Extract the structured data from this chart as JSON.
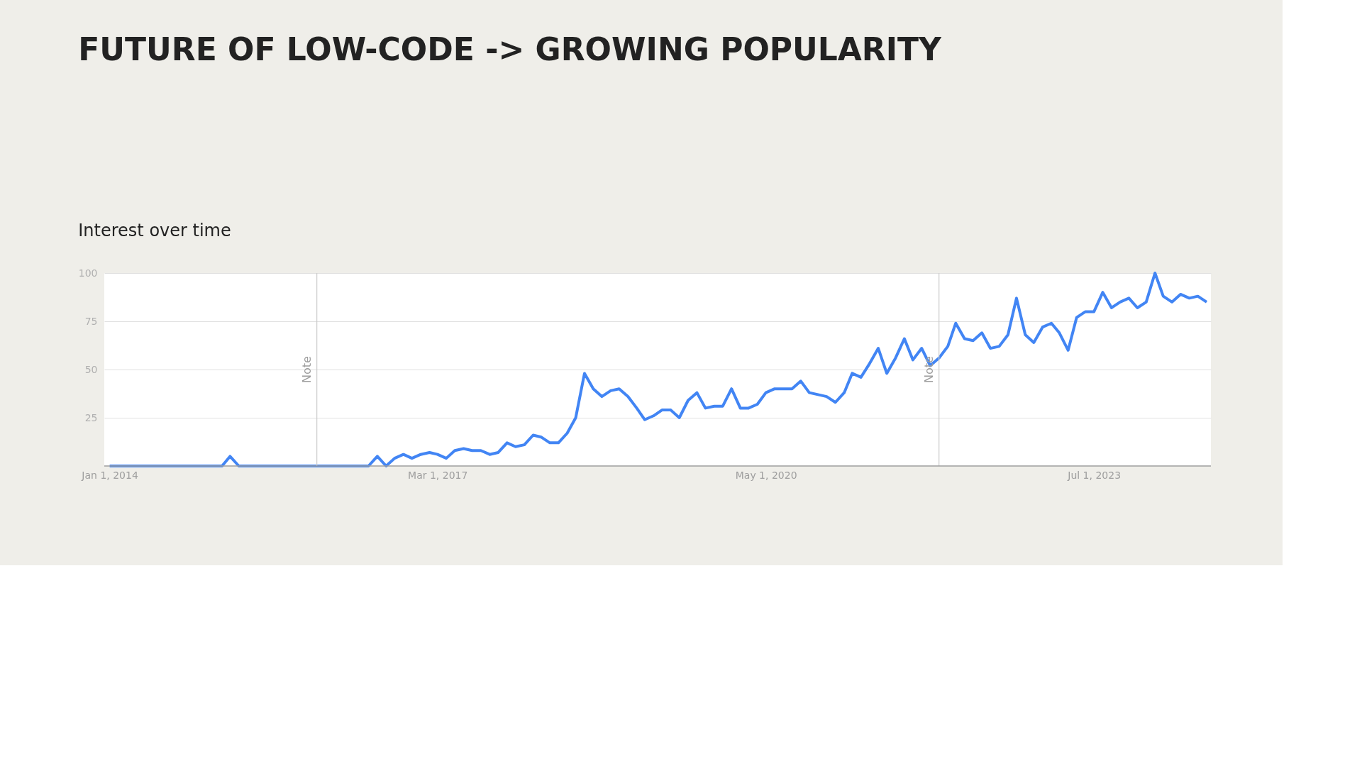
{
  "chart_data": {
    "type": "line",
    "title": "FUTURE OF LOW-CODE -> GROWING POPULARITY",
    "subtitle": "Interest over time",
    "x": [
      "2014-01",
      "2015-02",
      "2015-03",
      "2015-04",
      "2016-07",
      "2016-08",
      "2016-09",
      "2016-10",
      "2016-11",
      "2016-12",
      "2017-01",
      "2017-02",
      "2017-03",
      "2017-04",
      "2017-05",
      "2017-06",
      "2017-07",
      "2017-08",
      "2017-09",
      "2017-10",
      "2017-11",
      "2017-12",
      "2018-01",
      "2018-02",
      "2018-03",
      "2018-04",
      "2018-05",
      "2018-06",
      "2018-07",
      "2018-08",
      "2018-09",
      "2018-10",
      "2018-11",
      "2018-12",
      "2019-01",
      "2019-02",
      "2019-03",
      "2019-04",
      "2019-05",
      "2019-06",
      "2019-07",
      "2019-08",
      "2019-09",
      "2019-10",
      "2019-11",
      "2019-12",
      "2020-01",
      "2020-02",
      "2020-03",
      "2020-04",
      "2020-05",
      "2020-06",
      "2020-07",
      "2020-08",
      "2020-09",
      "2020-10",
      "2020-11",
      "2020-12",
      "2021-01",
      "2021-02",
      "2021-03",
      "2021-04",
      "2021-05",
      "2021-06",
      "2021-07",
      "2021-08",
      "2021-09",
      "2021-10",
      "2021-11",
      "2021-12",
      "2022-01",
      "2022-02",
      "2022-03",
      "2022-04",
      "2022-05",
      "2022-06",
      "2022-07",
      "2022-08",
      "2022-09",
      "2022-10",
      "2022-11",
      "2022-12",
      "2023-01",
      "2023-02",
      "2023-03",
      "2023-04",
      "2023-05",
      "2023-06",
      "2023-07",
      "2023-08",
      "2023-09",
      "2023-10",
      "2023-11",
      "2023-12",
      "2024-01",
      "2024-02",
      "2024-03",
      "2024-04",
      "2024-05",
      "2024-06",
      "2024-07",
      "2024-08"
    ],
    "series": [
      {
        "color": "#4285f4",
        "values": [
          0,
          0,
          5,
          0,
          0,
          5,
          0,
          4,
          6,
          4,
          6,
          7,
          6,
          4,
          8,
          9,
          8,
          8,
          6,
          7,
          12,
          10,
          11,
          16,
          15,
          12,
          12,
          17,
          25,
          48,
          40,
          36,
          39,
          40,
          36,
          30,
          24,
          26,
          29,
          29,
          25,
          34,
          38,
          30,
          31,
          31,
          40,
          30,
          30,
          32,
          38,
          40,
          40,
          40,
          44,
          38,
          37,
          36,
          33,
          38,
          48,
          46,
          53,
          61,
          48,
          56,
          66,
          55,
          61,
          52,
          56,
          62,
          74,
          66,
          65,
          69,
          61,
          62,
          68,
          87,
          68,
          64,
          72,
          74,
          69,
          60,
          77,
          80,
          80,
          90,
          82,
          85,
          87,
          82,
          85,
          100,
          88,
          85,
          89,
          87,
          88,
          85
        ]
      }
    ],
    "xlim": [
      "2013-12-13",
      "2024-08-16"
    ],
    "xticks": [
      {
        "value": "2014-01-01",
        "label": "Jan 1, 2014"
      },
      {
        "value": "2017-03-01",
        "label": "Mar 1, 2017"
      },
      {
        "value": "2020-05-01",
        "label": "May 1, 2020"
      },
      {
        "value": "2023-07-01",
        "label": "Jul 1, 2023"
      }
    ],
    "ylim": [
      0,
      100
    ],
    "yticks": [
      25,
      50,
      75,
      100
    ],
    "ref_lines": [
      {
        "axis": "x",
        "value": "2016-01",
        "label": "Note",
        "color": "#cccccc"
      },
      {
        "axis": "x",
        "value": "2022-01",
        "label": "Note",
        "color": "#cccccc"
      }
    ],
    "grid": "y",
    "legend": false,
    "marker": "none",
    "line_style": "solid"
  }
}
